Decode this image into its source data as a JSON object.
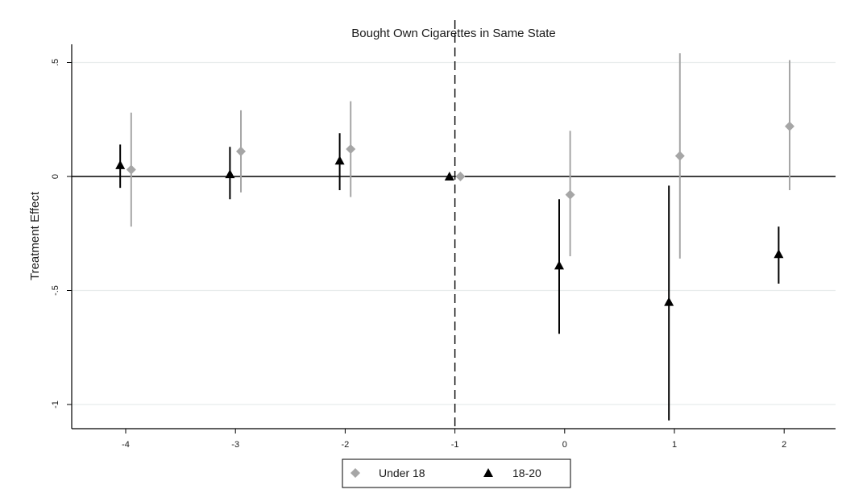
{
  "chart_data": {
    "type": "scatter",
    "title": "Bought Own Cigarettes in Same State",
    "xlabel": "",
    "ylabel": "Treatment Effect",
    "x": [
      -4,
      -3,
      -2,
      -1,
      0,
      1,
      2
    ],
    "x_tick_labels": [
      "-4",
      "-3",
      "-2",
      "-1",
      "0",
      "1",
      "2"
    ],
    "y_ticks": [
      0.5,
      0,
      -0.5,
      -1
    ],
    "y_tick_labels": [
      ".5",
      "0",
      "-.5",
      "-1"
    ],
    "xlim": [
      -4.45,
      2.45
    ],
    "ylim": [
      -1.12,
      0.58
    ],
    "grid": true,
    "reference_lines": {
      "horizontal_at": 0,
      "vertical_dashed_at": -1
    },
    "legend": {
      "position": "bottom-center"
    },
    "series": [
      {
        "name": "Under 18",
        "marker": "diamond",
        "color": "#a6a6a6",
        "offset": 0.05,
        "values": [
          0.03,
          0.11,
          0.12,
          0.0,
          -0.08,
          0.09,
          0.22
        ],
        "ci_low": [
          -0.22,
          -0.07,
          -0.09,
          0.0,
          -0.35,
          -0.36,
          -0.06
        ],
        "ci_high": [
          0.28,
          0.29,
          0.33,
          0.0,
          0.2,
          0.54,
          0.51
        ]
      },
      {
        "name": "18-20",
        "marker": "triangle",
        "color": "#000000",
        "offset": -0.05,
        "values": [
          0.05,
          0.01,
          0.07,
          0.0,
          -0.39,
          -0.55,
          -0.34
        ],
        "ci_low": [
          -0.05,
          -0.1,
          -0.06,
          0.0,
          -0.69,
          -1.07,
          -0.47
        ],
        "ci_high": [
          0.14,
          0.13,
          0.19,
          0.0,
          -0.1,
          -0.04,
          -0.22
        ]
      }
    ]
  }
}
